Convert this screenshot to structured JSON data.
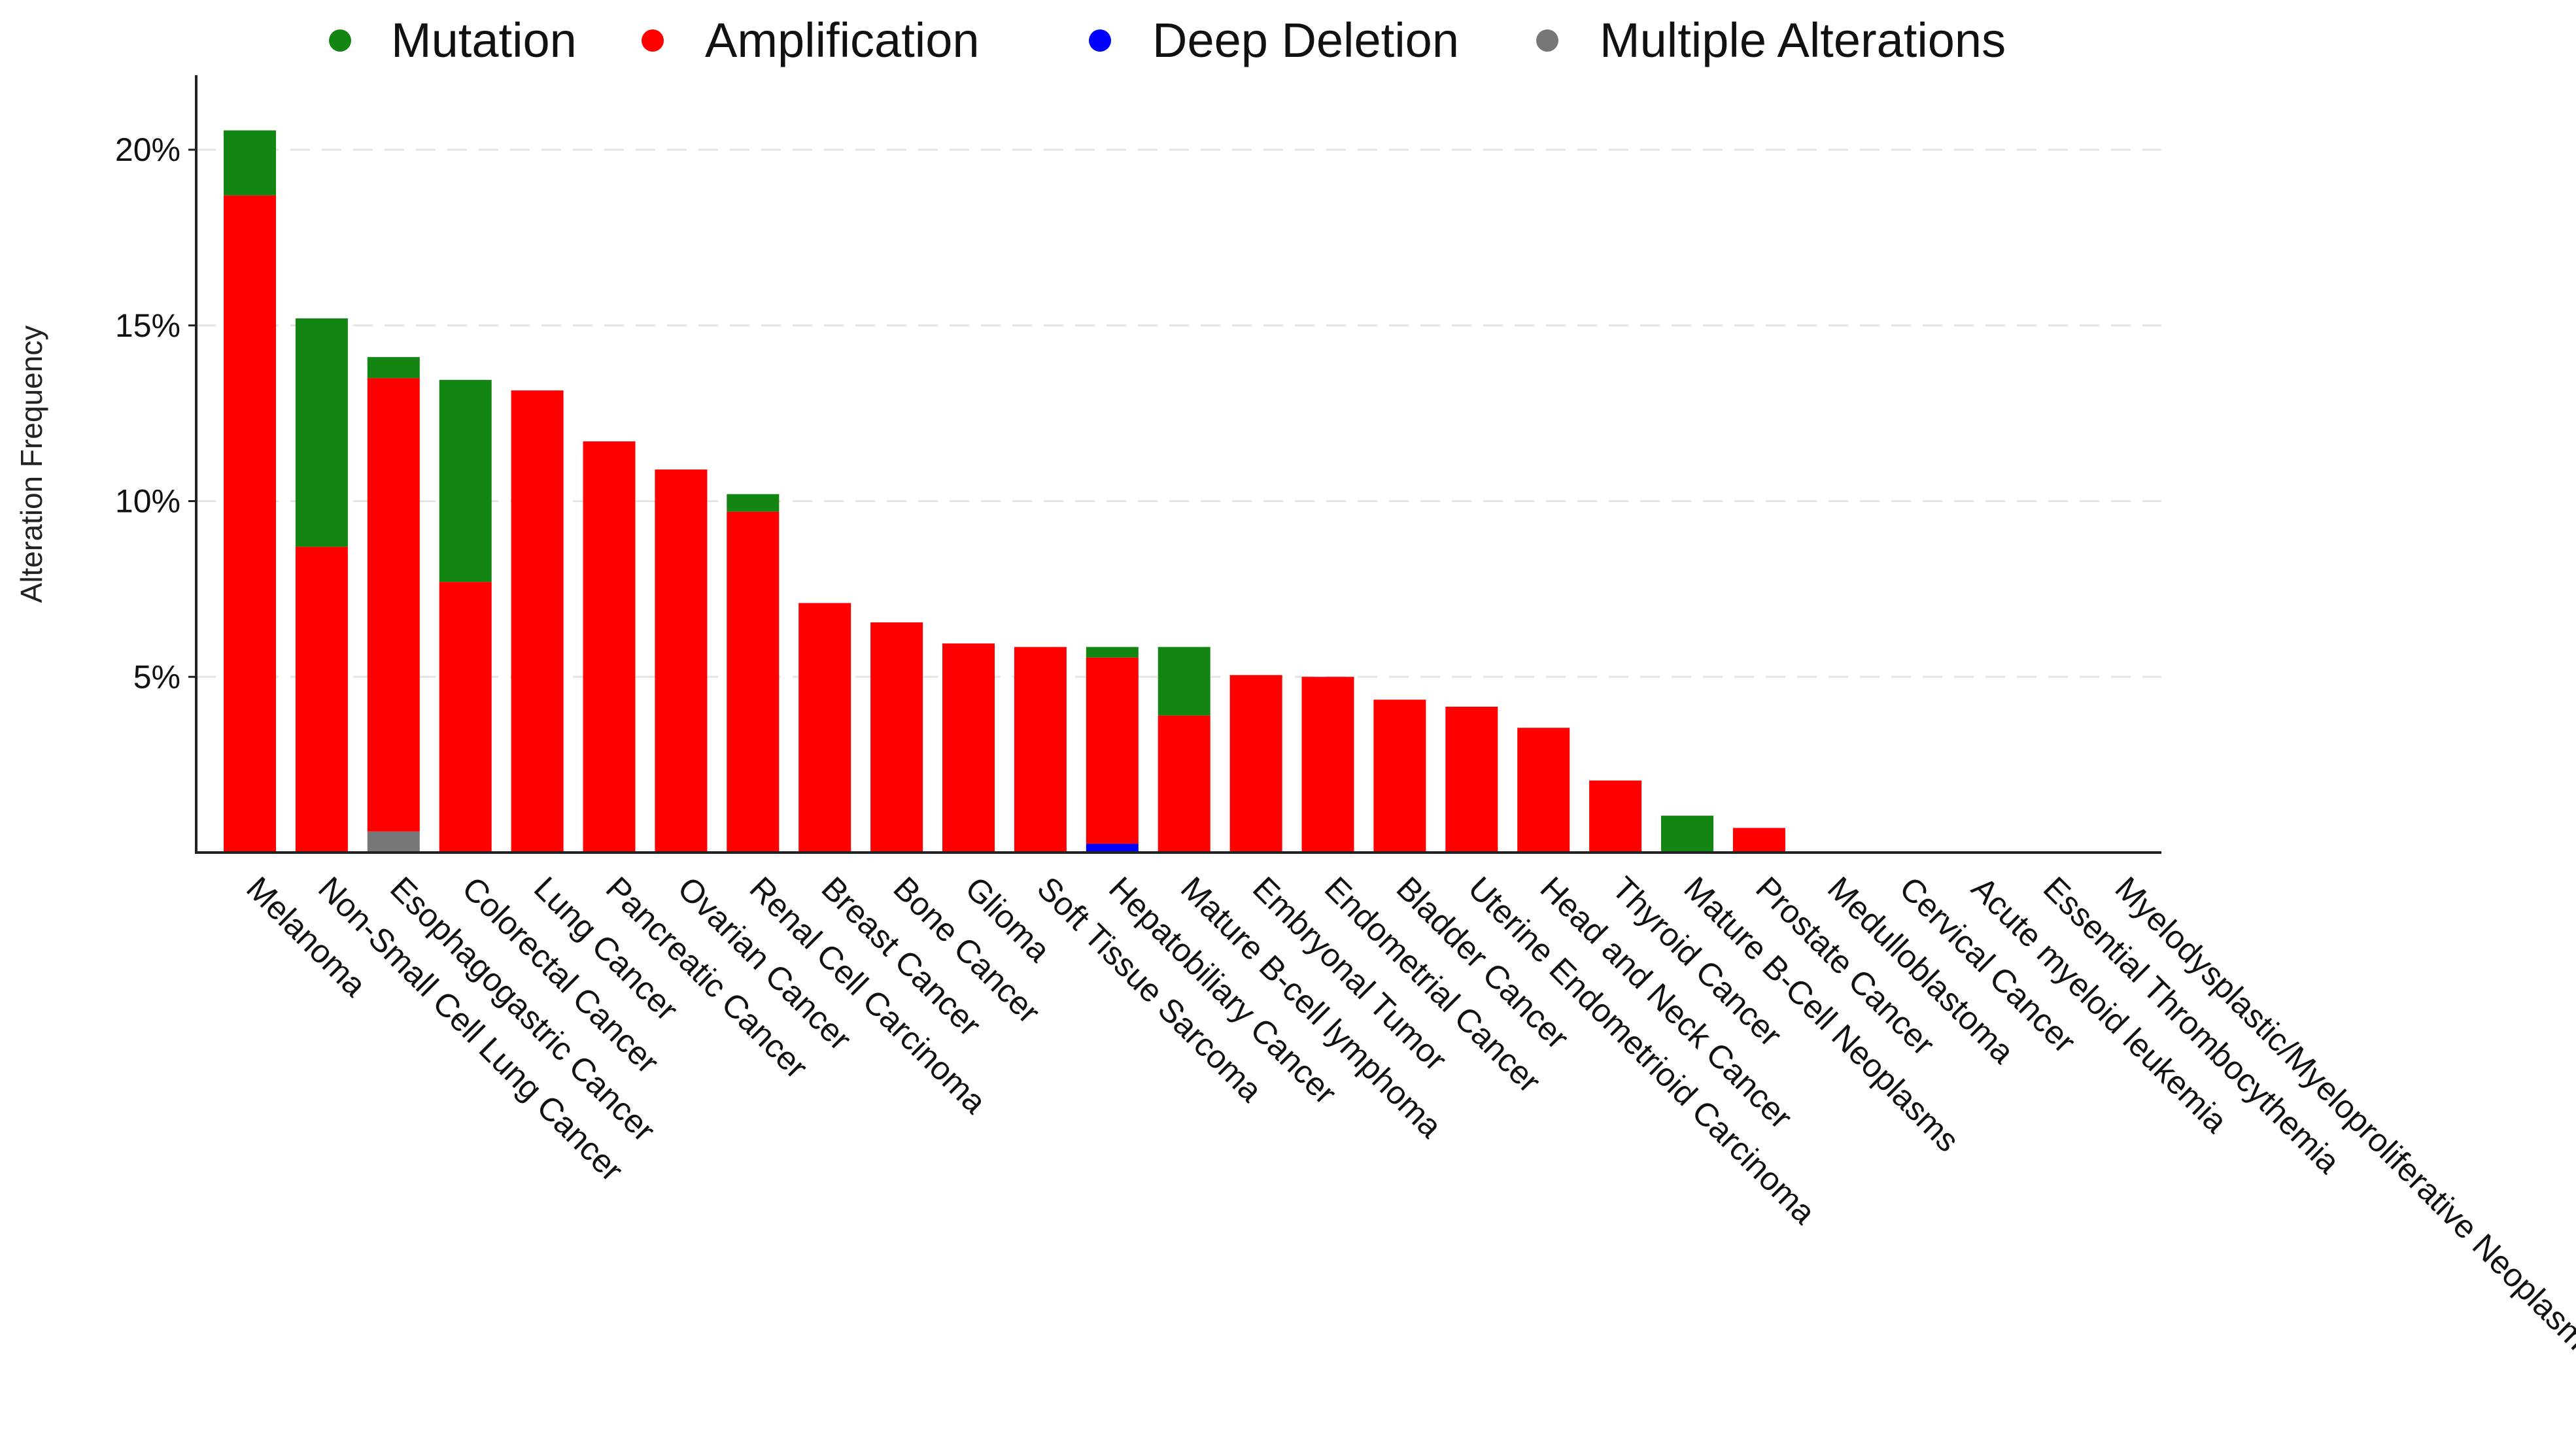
{
  "chart_data": {
    "type": "bar",
    "stacked": true,
    "title": "",
    "xlabel": "",
    "ylabel": "Alteration Frequency",
    "ylim": [
      0,
      22
    ],
    "yticks": [
      5,
      10,
      15,
      20
    ],
    "ytick_labels": [
      "5%",
      "10%",
      "15%",
      "20%"
    ],
    "grid": "horizontal-dashed",
    "legend_position": "top",
    "legend": [
      {
        "name": "Mutation",
        "color": "#138513"
      },
      {
        "name": "Amplification",
        "color": "#ff0000"
      },
      {
        "name": "Deep Deletion",
        "color": "#0000ff"
      },
      {
        "name": "Multiple Alterations",
        "color": "#777777"
      }
    ],
    "categories": [
      "Melanoma",
      "Non-Small Cell Lung Cancer",
      "Esophagogastric Cancer",
      "Colorectal Cancer",
      "Lung Cancer",
      "Pancreatic Cancer",
      "Ovarian Cancer",
      "Renal Cell Carcinoma",
      "Breast Cancer",
      "Bone Cancer",
      "Glioma",
      "Soft Tissue Sarcoma",
      "Hepatobiliary Cancer",
      "Mature B-cell lymphoma",
      "Embryonal Tumor",
      "Endometrial Cancer",
      "Bladder Cancer",
      "Uterine Endometrioid Carcinoma",
      "Head and Neck Cancer",
      "Thyroid Cancer",
      "Mature B-Cell Neoplasms",
      "Prostate Cancer",
      "Medulloblastoma",
      "Cervical Cancer",
      "Acute myeloid leukemia",
      "Essential Thrombocythemia",
      "Myelodysplastic/Myeloproliferative Neoplasms"
    ],
    "series": [
      {
        "name": "Multiple Alterations",
        "color": "#777777",
        "values": [
          0,
          0,
          0.6,
          0,
          0,
          0,
          0,
          0,
          0,
          0,
          0,
          0,
          0,
          0,
          0,
          0,
          0,
          0,
          0,
          0,
          0,
          0,
          0,
          0,
          0,
          0,
          0
        ]
      },
      {
        "name": "Deep Deletion",
        "color": "#0000ff",
        "values": [
          0,
          0,
          0,
          0,
          0,
          0,
          0,
          0,
          0,
          0,
          0,
          0,
          0.25,
          0,
          0,
          0,
          0,
          0,
          0,
          0,
          0,
          0,
          0,
          0,
          0,
          0,
          0
        ]
      },
      {
        "name": "Amplification",
        "color": "#ff0000",
        "values": [
          18.7,
          8.7,
          12.9,
          7.7,
          13.15,
          11.7,
          10.9,
          9.7,
          7.1,
          6.55,
          5.95,
          5.85,
          5.3,
          3.9,
          5.05,
          5.0,
          4.35,
          4.15,
          3.55,
          2.05,
          0,
          0.7,
          0,
          0,
          0,
          0,
          0
        ]
      },
      {
        "name": "Mutation",
        "color": "#138513",
        "values": [
          1.85,
          6.5,
          0.6,
          5.75,
          0,
          0,
          0,
          0.5,
          0,
          0,
          0,
          0,
          0.3,
          1.95,
          0,
          0,
          0,
          0,
          0,
          0,
          1.05,
          0,
          0,
          0,
          0,
          0,
          0
        ]
      }
    ]
  }
}
